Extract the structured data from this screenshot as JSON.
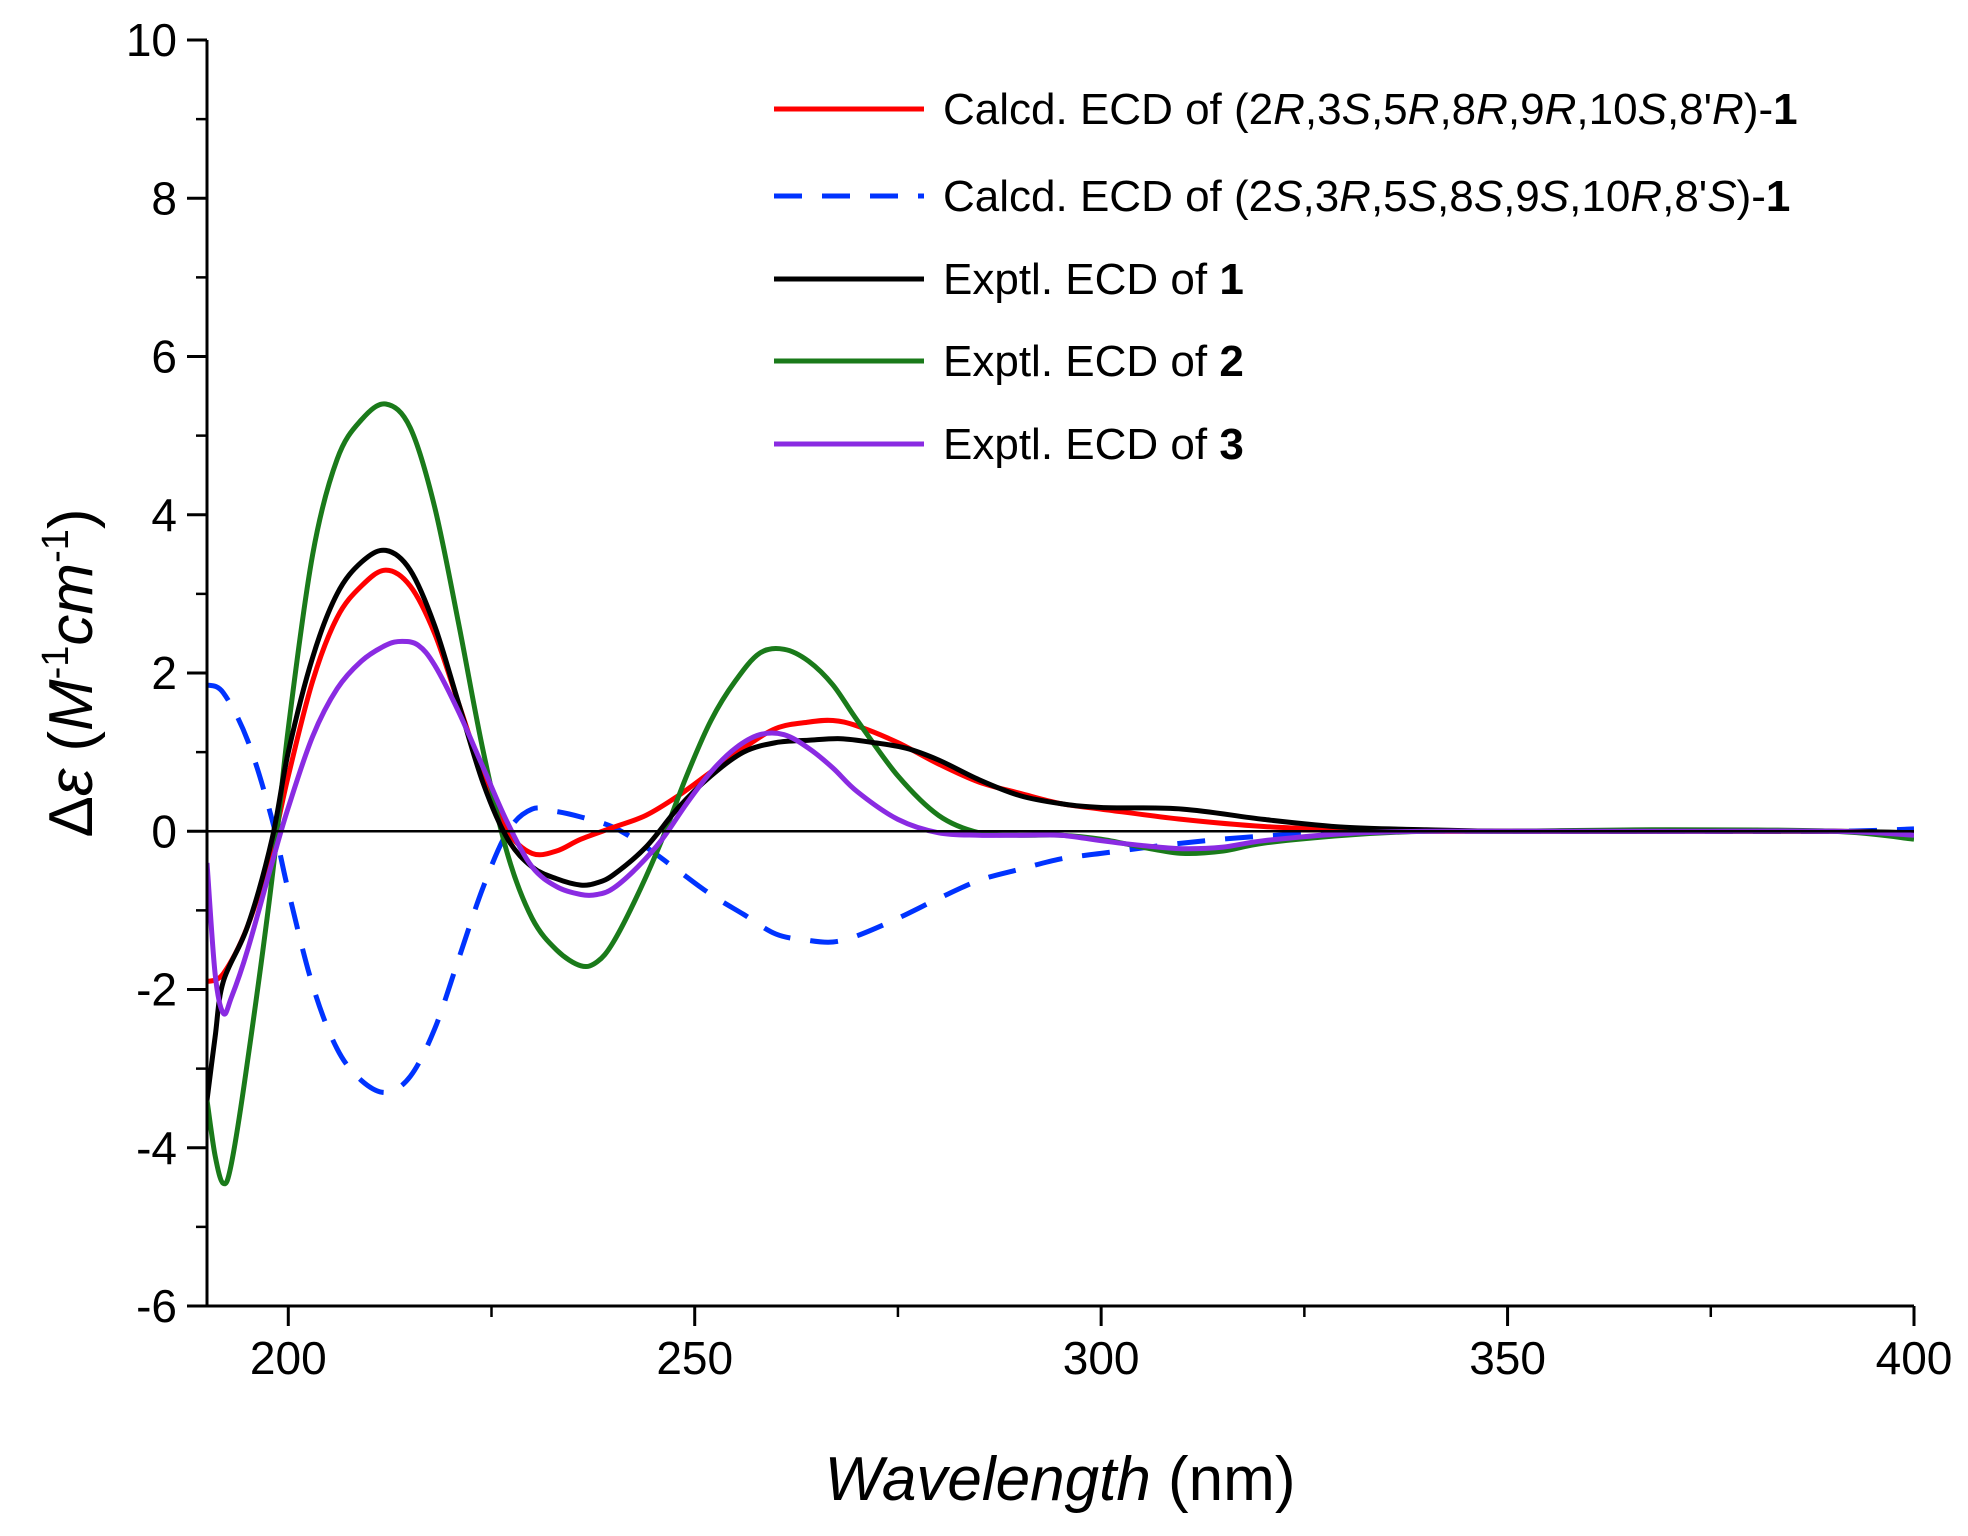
{
  "chart_data": {
    "type": "line",
    "title": "",
    "xlabel": {
      "italic": "Wavelength",
      "regular": " (nm)"
    },
    "ylabel": {
      "delta": "Δ",
      "epsilon": "ε",
      "open": " (",
      "M": "M",
      "exp1": "-1",
      "cm": "cm",
      "exp2": "-1",
      "close": ")"
    },
    "xlim": [
      190,
      400
    ],
    "ylim": [
      -6,
      10
    ],
    "xticks": [
      200,
      250,
      300,
      350,
      400
    ],
    "yticks": [
      -6,
      -4,
      -2,
      0,
      2,
      4,
      6,
      8,
      10
    ],
    "grid": false,
    "legend_position": "top-right",
    "zero_line": true,
    "series": [
      {
        "name": "Calcd. ECD of (2R,3S,5R,8R,9R,10S,8'R)-1",
        "legend_parts": [
          {
            "t": "Calcd. ECD of (2",
            "s": "n"
          },
          {
            "t": "R",
            "s": "i"
          },
          {
            "t": ",3",
            "s": "n"
          },
          {
            "t": "S",
            "s": "i"
          },
          {
            "t": ",5",
            "s": "n"
          },
          {
            "t": "R",
            "s": "i"
          },
          {
            "t": ",8",
            "s": "n"
          },
          {
            "t": "R",
            "s": "i"
          },
          {
            "t": ",9",
            "s": "n"
          },
          {
            "t": "R",
            "s": "i"
          },
          {
            "t": ",10",
            "s": "n"
          },
          {
            "t": "S",
            "s": "i"
          },
          {
            "t": ",8'",
            "s": "n"
          },
          {
            "t": "R",
            "s": "i"
          },
          {
            "t": ")-",
            "s": "n"
          },
          {
            "t": "1",
            "s": "b"
          }
        ],
        "color": "#ff0000",
        "dash": "solid",
        "x": [
          190,
          192,
          195,
          198,
          200,
          203,
          206,
          209,
          212,
          215,
          218,
          221,
          224,
          227,
          230,
          233,
          236,
          240,
          244,
          248,
          252,
          256,
          260,
          264,
          267,
          270,
          275,
          280,
          285,
          290,
          295,
          300,
          310,
          320,
          330,
          340,
          350,
          370,
          390,
          400
        ],
        "y": [
          -1.9,
          -1.8,
          -1.2,
          -0.2,
          0.7,
          1.9,
          2.7,
          3.1,
          3.3,
          3.1,
          2.5,
          1.6,
          0.7,
          0.0,
          -0.28,
          -0.25,
          -0.1,
          0.05,
          0.2,
          0.45,
          0.75,
          1.05,
          1.3,
          1.38,
          1.4,
          1.33,
          1.12,
          0.85,
          0.62,
          0.48,
          0.35,
          0.28,
          0.15,
          0.06,
          0.02,
          0.0,
          0.0,
          0.0,
          0.0,
          -0.03
        ]
      },
      {
        "name": "Calcd. ECD of (2S,3R,5S,8S,9S,10R,8'S)-1",
        "legend_parts": [
          {
            "t": "Calcd. ECD of (2",
            "s": "n"
          },
          {
            "t": "S",
            "s": "i"
          },
          {
            "t": ",3",
            "s": "n"
          },
          {
            "t": "R",
            "s": "i"
          },
          {
            "t": ",5",
            "s": "n"
          },
          {
            "t": "S",
            "s": "i"
          },
          {
            "t": ",8",
            "s": "n"
          },
          {
            "t": "S",
            "s": "i"
          },
          {
            "t": ",9",
            "s": "n"
          },
          {
            "t": "S",
            "s": "i"
          },
          {
            "t": ",10",
            "s": "n"
          },
          {
            "t": "R",
            "s": "i"
          },
          {
            "t": ",8'",
            "s": "n"
          },
          {
            "t": "S",
            "s": "i"
          },
          {
            "t": ")-",
            "s": "n"
          },
          {
            "t": "1",
            "s": "b"
          }
        ],
        "color": "#0033ff",
        "dash": "dashed",
        "x": [
          190,
          192,
          195,
          198,
          200,
          203,
          206,
          209,
          212,
          215,
          218,
          221,
          224,
          227,
          230,
          233,
          236,
          240,
          244,
          248,
          252,
          256,
          260,
          264,
          267,
          270,
          275,
          280,
          285,
          290,
          295,
          300,
          310,
          320,
          330,
          340,
          350,
          370,
          390,
          400
        ],
        "y": [
          1.85,
          1.75,
          1.15,
          0.15,
          -0.75,
          -1.95,
          -2.75,
          -3.15,
          -3.3,
          -3.1,
          -2.5,
          -1.6,
          -0.7,
          0.0,
          0.28,
          0.25,
          0.18,
          0.05,
          -0.2,
          -0.5,
          -0.8,
          -1.05,
          -1.3,
          -1.38,
          -1.4,
          -1.32,
          -1.1,
          -0.85,
          -0.62,
          -0.48,
          -0.35,
          -0.28,
          -0.15,
          -0.06,
          -0.02,
          0.0,
          0.0,
          0.0,
          0.0,
          0.03
        ]
      },
      {
        "name": "Exptl. ECD of 1",
        "legend_parts": [
          {
            "t": "Exptl. ECD of ",
            "s": "n"
          },
          {
            "t": "1",
            "s": "b"
          }
        ],
        "color": "#000000",
        "dash": "solid",
        "x": [
          190,
          191,
          192,
          195,
          198,
          200,
          203,
          206,
          209,
          212,
          215,
          218,
          221,
          224,
          227,
          230,
          233,
          236,
          238,
          240,
          244,
          248,
          252,
          256,
          260,
          264,
          268,
          272,
          276,
          280,
          285,
          290,
          295,
          300,
          310,
          320,
          330,
          340,
          350,
          370,
          390,
          400
        ],
        "y": [
          -3.4,
          -2.6,
          -1.9,
          -1.2,
          -0.1,
          1.0,
          2.2,
          3.0,
          3.4,
          3.55,
          3.3,
          2.6,
          1.6,
          0.6,
          -0.1,
          -0.45,
          -0.6,
          -0.68,
          -0.65,
          -0.55,
          -0.2,
          0.3,
          0.7,
          1.0,
          1.12,
          1.15,
          1.17,
          1.12,
          1.05,
          0.9,
          0.65,
          0.45,
          0.35,
          0.3,
          0.28,
          0.15,
          0.05,
          0.02,
          0.0,
          0.0,
          0.0,
          -0.02
        ]
      },
      {
        "name": "Exptl. ECD of 2",
        "legend_parts": [
          {
            "t": "Exptl. ECD of ",
            "s": "n"
          },
          {
            "t": "2",
            "s": "b"
          }
        ],
        "color": "#1a7a1a",
        "dash": "solid",
        "x": [
          190,
          191,
          192,
          193,
          195,
          198,
          200,
          203,
          206,
          209,
          212,
          215,
          218,
          221,
          224,
          227,
          230,
          233,
          236,
          238,
          240,
          243,
          246,
          249,
          252,
          255,
          258,
          261,
          264,
          267,
          270,
          275,
          280,
          285,
          290,
          295,
          300,
          305,
          310,
          315,
          320,
          330,
          340,
          350,
          370,
          390,
          400
        ],
        "y": [
          -3.4,
          -4.1,
          -4.45,
          -4.2,
          -2.9,
          -0.6,
          1.3,
          3.5,
          4.7,
          5.2,
          5.4,
          5.1,
          4.1,
          2.6,
          1.0,
          -0.3,
          -1.1,
          -1.5,
          -1.7,
          -1.65,
          -1.4,
          -0.8,
          -0.1,
          0.7,
          1.4,
          1.9,
          2.25,
          2.3,
          2.15,
          1.85,
          1.4,
          0.7,
          0.2,
          -0.02,
          -0.05,
          -0.05,
          -0.1,
          -0.2,
          -0.28,
          -0.25,
          -0.15,
          -0.05,
          0.0,
          0.0,
          0.02,
          0.0,
          -0.1
        ]
      },
      {
        "name": "Exptl. ECD of 3",
        "legend_parts": [
          {
            "t": "Exptl. ECD of ",
            "s": "n"
          },
          {
            "t": "3",
            "s": "b"
          }
        ],
        "color": "#8a2be2",
        "dash": "solid",
        "x": [
          190,
          191,
          192,
          193,
          195,
          198,
          200,
          203,
          206,
          209,
          212,
          214,
          216,
          218,
          221,
          224,
          227,
          230,
          233,
          236,
          238,
          240,
          243,
          246,
          249,
          252,
          255,
          258,
          261,
          264,
          267,
          270,
          275,
          280,
          285,
          290,
          295,
          300,
          305,
          310,
          315,
          320,
          330,
          340,
          350,
          370,
          390,
          400
        ],
        "y": [
          -0.4,
          -1.8,
          -2.3,
          -2.1,
          -1.5,
          -0.4,
          0.3,
          1.2,
          1.8,
          2.15,
          2.35,
          2.4,
          2.35,
          2.1,
          1.5,
          0.8,
          0.1,
          -0.45,
          -0.7,
          -0.8,
          -0.8,
          -0.72,
          -0.45,
          -0.1,
          0.35,
          0.75,
          1.05,
          1.22,
          1.22,
          1.05,
          0.8,
          0.5,
          0.15,
          -0.02,
          -0.05,
          -0.05,
          -0.05,
          -0.12,
          -0.18,
          -0.22,
          -0.2,
          -0.12,
          -0.03,
          0.0,
          0.0,
          0.0,
          0.0,
          -0.05
        ]
      }
    ]
  }
}
